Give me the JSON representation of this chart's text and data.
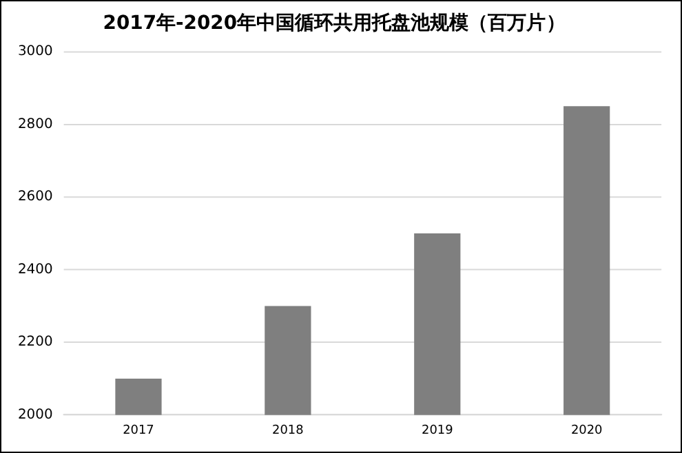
{
  "chart_data": {
    "type": "bar",
    "title": "2017年-2020年中国循环共用托盘池规模（百万片）",
    "categories": [
      "2017",
      "2018",
      "2019",
      "2020"
    ],
    "values": [
      2100,
      2300,
      2500,
      2850
    ],
    "color": "#7f7f7f",
    "ylim": [
      2000,
      3000
    ],
    "yticks": [
      2000,
      2200,
      2400,
      2600,
      2800,
      3000
    ],
    "grid": "y",
    "legend": false
  }
}
